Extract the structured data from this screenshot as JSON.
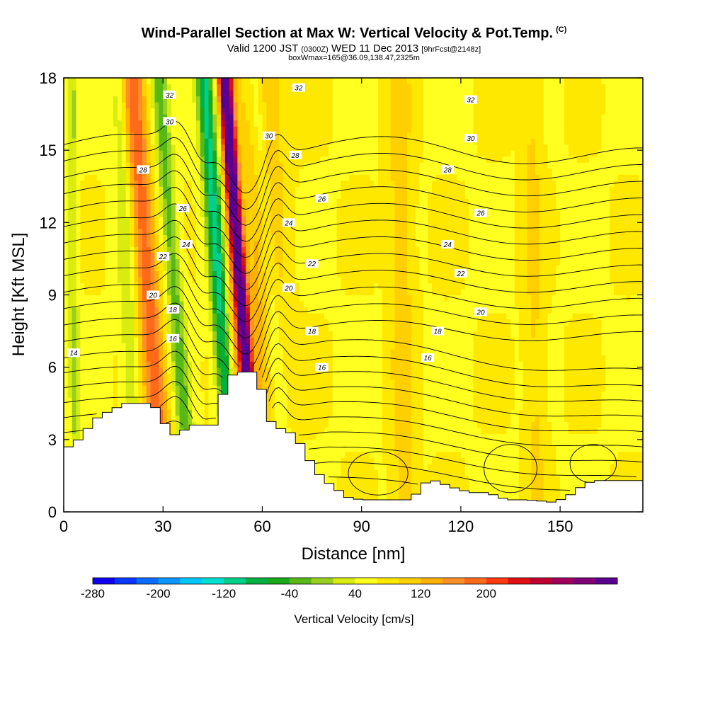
{
  "header": {
    "title": "Wind-Parallel Section at Max W: Vertical Velocity & Pot.Temp.",
    "title_mark": "(C)",
    "valid_prefix": "Valid 1200 JST",
    "valid_small1": "(0300Z)",
    "valid_mid": "WED 11 Dec 2013",
    "valid_small2": "[9hrFcst@2148z]",
    "box_info": "boxWmax=165@36.09,138.47,2325m"
  },
  "chart_data": {
    "type": "heatmap",
    "title": "Wind-Parallel Section at Max W: Vertical Velocity & Pot.Temp.",
    "xlabel": "Distance [nm]",
    "ylabel": "Height [Kft MSL]",
    "xlim": [
      0,
      175
    ],
    "ylim": [
      0,
      18
    ],
    "xticks": [
      0,
      30,
      60,
      90,
      120,
      150
    ],
    "yticks": [
      0,
      3,
      6,
      9,
      12,
      15,
      18
    ],
    "grid": false,
    "colorbar": {
      "label": "Vertical Velocity [cm/s]",
      "ticks": [
        -280,
        -200,
        -120,
        -40,
        40,
        120,
        200
      ],
      "colors": [
        "#1000f0",
        "#0838ff",
        "#0a6cff",
        "#0a98ff",
        "#00c8ff",
        "#00e0d0",
        "#00d08a",
        "#00b040",
        "#18a818",
        "#58b818",
        "#98d020",
        "#d8ec10",
        "#ffff20",
        "#ffe800",
        "#ffd000",
        "#ffb000",
        "#ff9028",
        "#ff6a1a",
        "#ff3a10",
        "#e01010",
        "#c00030",
        "#a0005a",
        "#800078",
        "#5a0090"
      ]
    },
    "terrain": [
      [
        0,
        2.6
      ],
      [
        3,
        2.8
      ],
      [
        6,
        3.2
      ],
      [
        9,
        3.8
      ],
      [
        14,
        4.2
      ],
      [
        19,
        4.5
      ],
      [
        26,
        4.5
      ],
      [
        29,
        4.2
      ],
      [
        32,
        3.2
      ],
      [
        35,
        3.2
      ],
      [
        38,
        3.6
      ],
      [
        42,
        3.6
      ],
      [
        46,
        3.6
      ],
      [
        49,
        5.4
      ],
      [
        52,
        5.8
      ],
      [
        58,
        5.8
      ],
      [
        61,
        4.6
      ],
      [
        63,
        3.6
      ],
      [
        70,
        3.2
      ],
      [
        74,
        2.2
      ],
      [
        78,
        1.4
      ],
      [
        82,
        1.0
      ],
      [
        86,
        0.6
      ],
      [
        90,
        0.5
      ],
      [
        105,
        0.5
      ],
      [
        110,
        1.3
      ],
      [
        112,
        1.3
      ],
      [
        118,
        1.0
      ],
      [
        123,
        0.8
      ],
      [
        128,
        0.8
      ],
      [
        134,
        0.5
      ],
      [
        140,
        0.5
      ],
      [
        148,
        0.4
      ],
      [
        152,
        0.6
      ],
      [
        158,
        1.2
      ],
      [
        162,
        1.3
      ],
      [
        175,
        1.3
      ]
    ],
    "updraft_bands": [
      {
        "x_base": 30.5,
        "slope": 0.55,
        "w": 3.5,
        "value": 110,
        "top": 18
      },
      {
        "x_base": 58.5,
        "slope": 0.55,
        "w": 1.9,
        "value": 270,
        "top": 18
      },
      {
        "x_base": 61.5,
        "slope": 0.1,
        "w": 6.0,
        "value": 60,
        "top": 18
      },
      {
        "x_base": 53.0,
        "slope": 0.2,
        "w": 2.5,
        "value": 50,
        "top": 18
      },
      {
        "x_base": 103.0,
        "slope": 0.1,
        "w": 3.5,
        "value": 40,
        "top": 18
      },
      {
        "x_base": 143.0,
        "slope": 0.1,
        "w": 3.0,
        "value": 30,
        "top": 18
      }
    ],
    "downdraft_bands": [
      {
        "x_base": 38.5,
        "slope": 0.55,
        "w": 2.5,
        "value": -80,
        "top": 18
      },
      {
        "x_base": 51.5,
        "slope": 0.5,
        "w": 2.5,
        "value": -150,
        "top": 18
      },
      {
        "x_base": 22.0,
        "slope": 0.3,
        "w": 2.5,
        "value": -45,
        "top": 18
      },
      {
        "x_base": 67.0,
        "slope": 0.5,
        "w": 2.5,
        "value": -55,
        "top": 18
      },
      {
        "x_base": 3.5,
        "slope": 0.05,
        "w": 1.5,
        "value": -45,
        "top": 18
      }
    ],
    "contour_levels": [
      12,
      13,
      14,
      15,
      16,
      17,
      18,
      19,
      20,
      21,
      22,
      23,
      24,
      25,
      26,
      27,
      28,
      29,
      30,
      31,
      32,
      33
    ],
    "contour_labels": [
      {
        "level": 14,
        "x": 3,
        "y": 6.6
      },
      {
        "level": 16,
        "x": 33,
        "y": 7.2
      },
      {
        "level": 16,
        "x": 78,
        "y": 6.0
      },
      {
        "level": 16,
        "x": 110,
        "y": 6.4
      },
      {
        "level": 18,
        "x": 33,
        "y": 8.4
      },
      {
        "level": 18,
        "x": 75,
        "y": 7.5
      },
      {
        "level": 18,
        "x": 113,
        "y": 7.5
      },
      {
        "level": 20,
        "x": 27,
        "y": 9.0
      },
      {
        "level": 20,
        "x": 68,
        "y": 9.3
      },
      {
        "level": 20,
        "x": 126,
        "y": 8.3
      },
      {
        "level": 22,
        "x": 30,
        "y": 10.6
      },
      {
        "level": 22,
        "x": 75,
        "y": 10.3
      },
      {
        "level": 22,
        "x": 120,
        "y": 9.9
      },
      {
        "level": 24,
        "x": 37,
        "y": 11.1
      },
      {
        "level": 24,
        "x": 68,
        "y": 12.0
      },
      {
        "level": 24,
        "x": 116,
        "y": 11.1
      },
      {
        "level": 26,
        "x": 36,
        "y": 12.6
      },
      {
        "level": 26,
        "x": 78,
        "y": 13.0
      },
      {
        "level": 26,
        "x": 126,
        "y": 12.4
      },
      {
        "level": 28,
        "x": 24,
        "y": 14.2
      },
      {
        "level": 28,
        "x": 70,
        "y": 14.8
      },
      {
        "level": 28,
        "x": 116,
        "y": 14.2
      },
      {
        "level": 30,
        "x": 32,
        "y": 16.2
      },
      {
        "level": 30,
        "x": 62,
        "y": 15.6
      },
      {
        "level": 30,
        "x": 123,
        "y": 15.5
      },
      {
        "level": 32,
        "x": 32,
        "y": 17.3
      },
      {
        "level": 32,
        "x": 71,
        "y": 17.6
      },
      {
        "level": 32,
        "x": 123,
        "y": 17.1
      }
    ]
  }
}
